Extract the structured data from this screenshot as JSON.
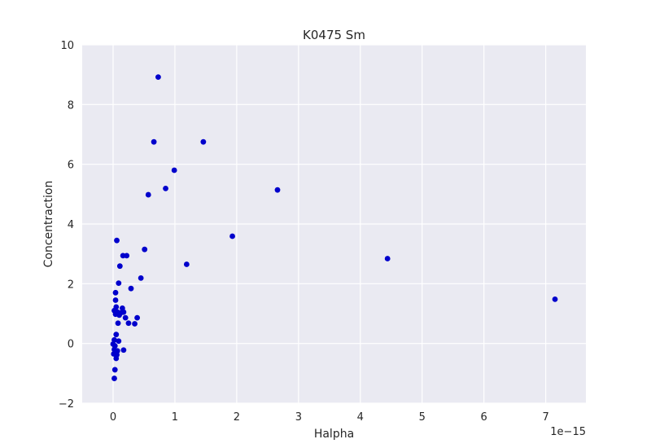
{
  "chart_data": {
    "type": "scatter",
    "title": "K0475 Sm",
    "xlabel": "Halpha",
    "ylabel": "Concentraction",
    "x_offset_label": "1e−15",
    "xlim": [
      -0.5,
      7.65
    ],
    "ylim": [
      -2,
      10
    ],
    "x_ticks": [
      0,
      1,
      2,
      3,
      4,
      5,
      6,
      7
    ],
    "x_tick_labels": [
      "0",
      "1",
      "2",
      "3",
      "4",
      "5",
      "6",
      "7"
    ],
    "y_ticks": [
      -2,
      0,
      2,
      4,
      6,
      8,
      10
    ],
    "y_tick_labels": [
      "−2",
      "0",
      "2",
      "4",
      "6",
      "8",
      "10"
    ],
    "grid": true,
    "colors": {
      "background": "#eaeaf2",
      "grid": "#ffffff",
      "marker": "#0000cc"
    },
    "points": [
      {
        "x": 0.73,
        "y": 8.92
      },
      {
        "x": 0.66,
        "y": 6.75
      },
      {
        "x": 1.46,
        "y": 6.75
      },
      {
        "x": 0.99,
        "y": 5.8
      },
      {
        "x": 0.85,
        "y": 5.19
      },
      {
        "x": 0.57,
        "y": 4.98
      },
      {
        "x": 2.66,
        "y": 5.14
      },
      {
        "x": 1.93,
        "y": 3.59
      },
      {
        "x": 0.06,
        "y": 3.45
      },
      {
        "x": 0.51,
        "y": 3.15
      },
      {
        "x": 0.16,
        "y": 2.94
      },
      {
        "x": 0.22,
        "y": 2.94
      },
      {
        "x": 0.11,
        "y": 2.59
      },
      {
        "x": 1.19,
        "y": 2.65
      },
      {
        "x": 4.44,
        "y": 2.84
      },
      {
        "x": 0.45,
        "y": 2.19
      },
      {
        "x": 0.09,
        "y": 2.02
      },
      {
        "x": 0.29,
        "y": 1.84
      },
      {
        "x": 0.04,
        "y": 1.7
      },
      {
        "x": 7.15,
        "y": 1.48
      },
      {
        "x": 0.04,
        "y": 1.45
      },
      {
        "x": 0.05,
        "y": 1.22
      },
      {
        "x": 0.15,
        "y": 1.18
      },
      {
        "x": 0.02,
        "y": 1.1
      },
      {
        "x": 0.07,
        "y": 1.05
      },
      {
        "x": 0.12,
        "y": 1.02
      },
      {
        "x": 0.17,
        "y": 1.05
      },
      {
        "x": 0.04,
        "y": 0.98
      },
      {
        "x": 0.1,
        "y": 0.95
      },
      {
        "x": 0.2,
        "y": 0.86
      },
      {
        "x": 0.39,
        "y": 0.86
      },
      {
        "x": 0.08,
        "y": 0.68
      },
      {
        "x": 0.25,
        "y": 0.68
      },
      {
        "x": 0.35,
        "y": 0.66
      },
      {
        "x": 0.05,
        "y": 0.3
      },
      {
        "x": 0.02,
        "y": 0.12
      },
      {
        "x": 0.09,
        "y": 0.08
      },
      {
        "x": 0.0,
        "y": -0.02
      },
      {
        "x": 0.03,
        "y": -0.08
      },
      {
        "x": 0.02,
        "y": -0.2
      },
      {
        "x": 0.07,
        "y": -0.25
      },
      {
        "x": 0.17,
        "y": -0.22
      },
      {
        "x": 0.01,
        "y": -0.35
      },
      {
        "x": 0.06,
        "y": -0.38
      },
      {
        "x": 0.05,
        "y": -0.5
      },
      {
        "x": 0.03,
        "y": -0.88
      },
      {
        "x": 0.02,
        "y": -1.17
      }
    ]
  }
}
